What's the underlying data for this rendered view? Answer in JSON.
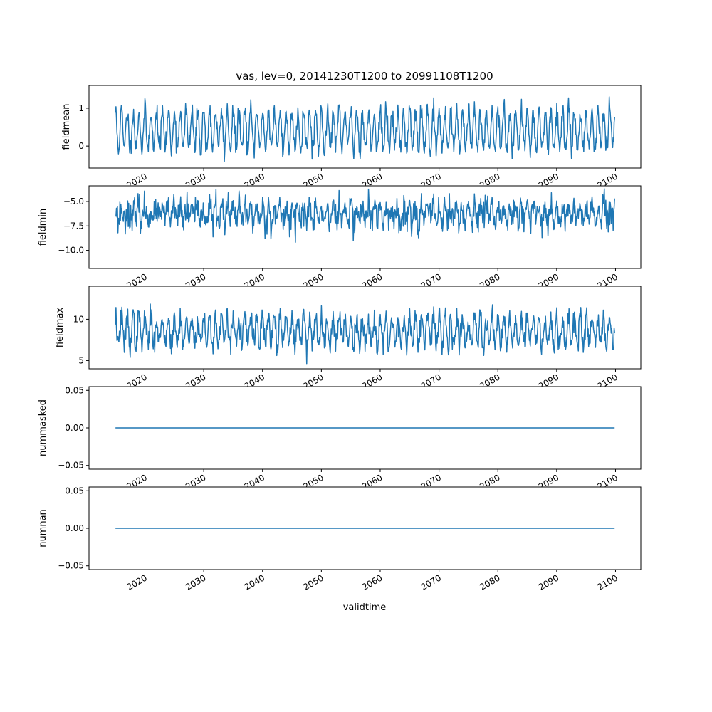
{
  "figure": {
    "title": "vas, lev=0, 20141230T1200 to 20991108T1200",
    "xlabel": "validtime"
  },
  "chart_data": [
    {
      "type": "line",
      "ylabel": "fieldmean",
      "xlim": [
        2010.5,
        2104.3
      ],
      "ylim": [
        -0.58,
        1.6
      ],
      "yticks": [
        0,
        1
      ],
      "xticks": [
        2020,
        2030,
        2040,
        2050,
        2060,
        2070,
        2080,
        2090,
        2100
      ],
      "x_range": [
        2015.0,
        2099.85
      ],
      "n_points": 1019,
      "value_pattern": {
        "kind": "seasonal",
        "base": 0.42,
        "amplitude": 0.5,
        "noise": 0.32,
        "seed": 11,
        "clip": [
          -0.58,
          1.48
        ]
      }
    },
    {
      "type": "line",
      "ylabel": "fieldmin",
      "xlim": [
        2010.5,
        2104.3
      ],
      "ylim": [
        -11.85,
        -3.4
      ],
      "yticks": [
        -10.0,
        -7.5,
        -5.0
      ],
      "xticks": [
        2020,
        2030,
        2040,
        2050,
        2060,
        2070,
        2080,
        2090,
        2100
      ],
      "x_range": [
        2015.0,
        2099.85
      ],
      "n_points": 1019,
      "value_pattern": {
        "kind": "seasonal",
        "base": -6.3,
        "amplitude": 0.7,
        "noise": 1.7,
        "seed": 23,
        "clip": [
          -11.5,
          -3.7
        ]
      }
    },
    {
      "type": "line",
      "ylabel": "fieldmax",
      "xlim": [
        2010.5,
        2104.3
      ],
      "ylim": [
        4.0,
        14.0
      ],
      "yticks": [
        5,
        10
      ],
      "xticks": [
        2020,
        2030,
        2040,
        2050,
        2060,
        2070,
        2080,
        2090,
        2100
      ],
      "x_range": [
        2015.0,
        2099.85
      ],
      "n_points": 1019,
      "value_pattern": {
        "kind": "seasonal",
        "base": 8.6,
        "amplitude": 1.6,
        "noise": 1.7,
        "seed": 37,
        "clip": [
          4.5,
          13.6
        ]
      }
    },
    {
      "type": "line",
      "ylabel": "nummasked",
      "xlim": [
        2010.5,
        2104.3
      ],
      "ylim": [
        -0.055,
        0.055
      ],
      "yticks": [
        -0.05,
        0.0,
        0.05
      ],
      "xticks": [
        2020,
        2030,
        2040,
        2050,
        2060,
        2070,
        2080,
        2090,
        2100
      ],
      "x_range": [
        2015.0,
        2099.85
      ],
      "constant_value": 0.0
    },
    {
      "type": "line",
      "ylabel": "numnan",
      "xlim": [
        2010.5,
        2104.3
      ],
      "ylim": [
        -0.055,
        0.055
      ],
      "yticks": [
        -0.05,
        0.0,
        0.05
      ],
      "xticks": [
        2020,
        2030,
        2040,
        2050,
        2060,
        2070,
        2080,
        2090,
        2100
      ],
      "x_range": [
        2015.0,
        2099.85
      ],
      "constant_value": 0.0
    }
  ],
  "colors": {
    "series": "#1f77b4",
    "axes": "#000000"
  }
}
